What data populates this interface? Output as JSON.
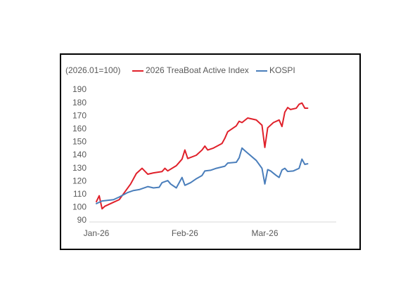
{
  "chart_data": {
    "type": "line",
    "y_axis_label": "(2026.01=100)",
    "xlim": [
      0,
      84
    ],
    "xticks": [
      {
        "value": 0,
        "label": "Jan-26"
      },
      {
        "value": 31,
        "label": "Feb-26"
      },
      {
        "value": 59,
        "label": "Mar-26"
      }
    ],
    "ylim": [
      90,
      190
    ],
    "yticks": [
      90,
      100,
      110,
      120,
      130,
      140,
      150,
      160,
      170,
      180,
      190
    ],
    "grid": false,
    "legend": "top",
    "series": [
      {
        "name": "2026 TreaBoat Active Index",
        "color": "#e0202a",
        "x": [
          0,
          1,
          2,
          3,
          6,
          8,
          9,
          12,
          14,
          16,
          18,
          20,
          23,
          24,
          25,
          28,
          30,
          31,
          32,
          35,
          37,
          38,
          39,
          41,
          44,
          45,
          46,
          49,
          50,
          51,
          53,
          56,
          58,
          59,
          60,
          62,
          64,
          65,
          66,
          67,
          68,
          70,
          71,
          72,
          73,
          74
        ],
        "values": [
          104.5,
          109,
          99,
          101,
          104,
          106,
          109,
          118,
          126,
          130,
          125.5,
          126.5,
          127.5,
          130,
          128,
          132,
          137,
          144,
          137.5,
          140,
          144,
          147,
          144,
          145.5,
          149,
          153,
          158,
          162.5,
          166,
          165,
          168.5,
          167,
          163,
          146,
          161,
          165,
          167,
          162,
          173,
          176.5,
          175,
          176,
          179,
          180,
          176,
          176
        ]
      },
      {
        "name": "KOSPI",
        "color": "#4a7ebb",
        "x": [
          0,
          2,
          6,
          8,
          11,
          13,
          15,
          18,
          20,
          22,
          23,
          25,
          26,
          28,
          30,
          31,
          33,
          35,
          37,
          38,
          40,
          42,
          45,
          46,
          49,
          50,
          51,
          52,
          53,
          56,
          58,
          59,
          60,
          61,
          63,
          64,
          65,
          66,
          67,
          69,
          71,
          72,
          73,
          74
        ],
        "values": [
          103,
          105,
          106,
          108,
          111.5,
          113,
          113.7,
          116,
          115,
          115.5,
          119,
          120.6,
          118,
          115,
          123,
          117,
          119,
          122,
          124.5,
          128,
          128.5,
          130,
          131.6,
          134,
          134.6,
          138,
          145.5,
          143.5,
          141.6,
          136,
          130,
          118,
          129,
          128,
          124.5,
          123,
          128.7,
          130,
          127.6,
          128,
          130,
          137,
          133,
          133.5
        ]
      }
    ]
  }
}
